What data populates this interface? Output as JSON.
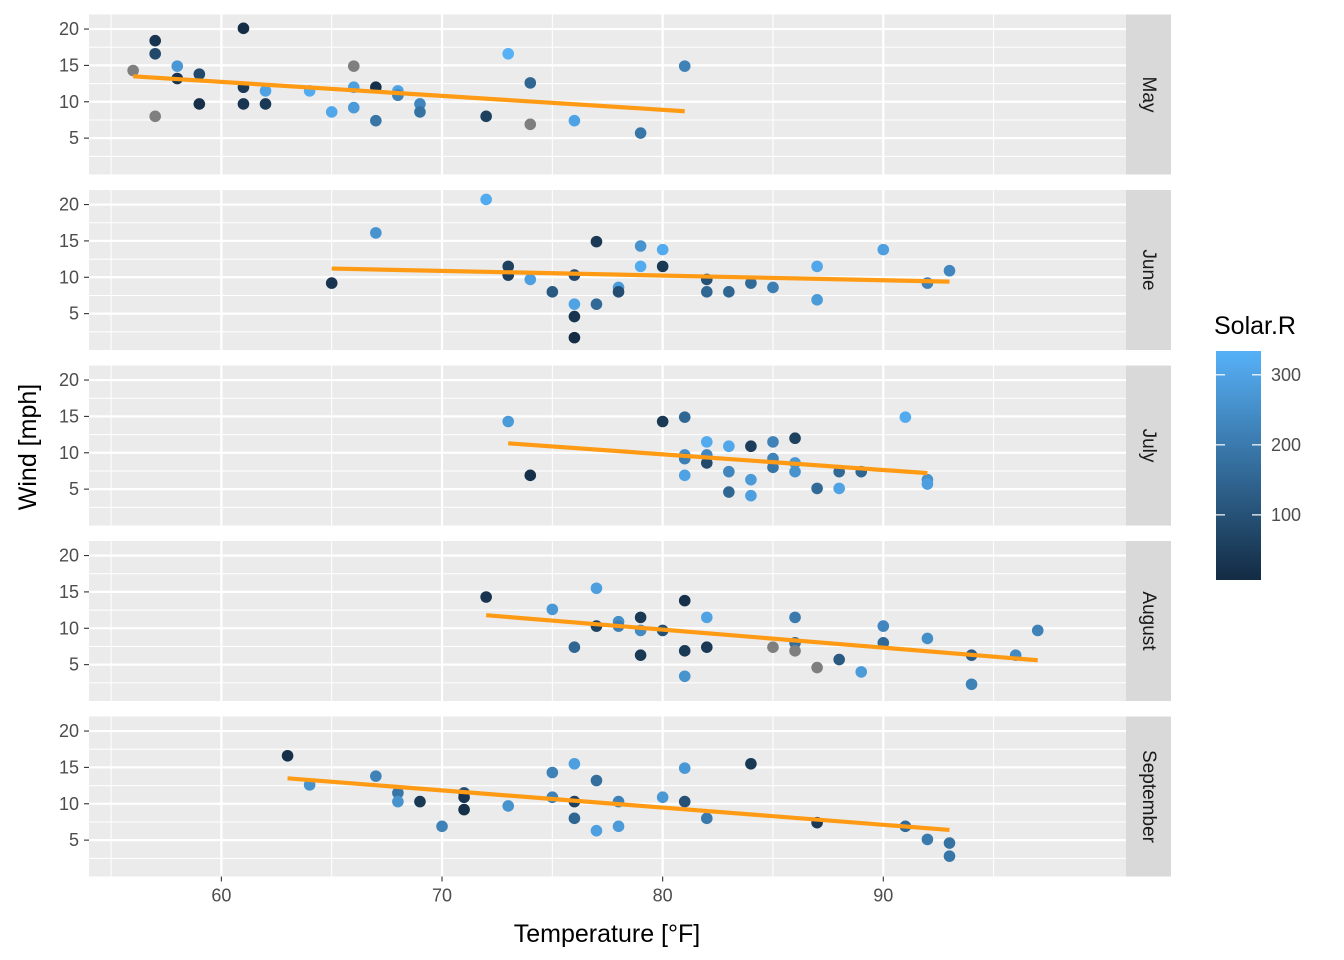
{
  "chart_data": {
    "type": "scatter",
    "facet_by": "Month",
    "xlabel": "Temperature [°F]",
    "ylabel": "Wind [mph]",
    "xlim": [
      54,
      101
    ],
    "ylim": [
      0,
      22
    ],
    "x_ticks": [
      60,
      70,
      80,
      90
    ],
    "y_ticks": [
      5,
      10,
      15,
      20
    ],
    "grid": true,
    "legend_position": "right",
    "color_scale": {
      "title": "Solar.R",
      "low_color": "#132B43",
      "high_color": "#56B1F7",
      "na_color": "#7F7F7F",
      "limits": [
        7,
        334
      ],
      "breaks": [
        100,
        200,
        300
      ]
    },
    "trend_line_color": "#FF9A14",
    "facets": [
      {
        "label": "May",
        "trend": {
          "x": [
            56,
            81
          ],
          "y": [
            13.5,
            8.7
          ]
        },
        "points": [
          {
            "x": 56,
            "y": 14.3,
            "solar": null
          },
          {
            "x": 57,
            "y": 18.4,
            "solar": 30
          },
          {
            "x": 57,
            "y": 16.6,
            "solar": 80
          },
          {
            "x": 57,
            "y": 8.0,
            "solar": null
          },
          {
            "x": 58,
            "y": 14.9,
            "solar": 270
          },
          {
            "x": 58,
            "y": 13.2,
            "solar": 30
          },
          {
            "x": 59,
            "y": 13.8,
            "solar": 80
          },
          {
            "x": 59,
            "y": 9.7,
            "solar": 20
          },
          {
            "x": 61,
            "y": 20.1,
            "solar": 10
          },
          {
            "x": 61,
            "y": 12.0,
            "solar": 40
          },
          {
            "x": 61,
            "y": 9.7,
            "solar": 30
          },
          {
            "x": 62,
            "y": 11.5,
            "solar": 300
          },
          {
            "x": 62,
            "y": 9.7,
            "solar": 40
          },
          {
            "x": 64,
            "y": 11.5,
            "solar": 320
          },
          {
            "x": 65,
            "y": 8.6,
            "solar": 310
          },
          {
            "x": 66,
            "y": 14.9,
            "solar": null
          },
          {
            "x": 66,
            "y": 12.0,
            "solar": 290
          },
          {
            "x": 66,
            "y": 9.2,
            "solar": 280
          },
          {
            "x": 67,
            "y": 12.0,
            "solar": 20
          },
          {
            "x": 67,
            "y": 7.4,
            "solar": 190
          },
          {
            "x": 68,
            "y": 11.5,
            "solar": 300
          },
          {
            "x": 68,
            "y": 10.9,
            "solar": 220
          },
          {
            "x": 69,
            "y": 9.7,
            "solar": 230
          },
          {
            "x": 69,
            "y": 8.6,
            "solar": 180
          },
          {
            "x": 72,
            "y": 8.0,
            "solar": 60
          },
          {
            "x": 73,
            "y": 16.6,
            "solar": 334
          },
          {
            "x": 74,
            "y": 12.6,
            "solar": 150
          },
          {
            "x": 74,
            "y": 6.9,
            "solar": null
          },
          {
            "x": 76,
            "y": 7.4,
            "solar": 300
          },
          {
            "x": 79,
            "y": 5.7,
            "solar": 190
          },
          {
            "x": 81,
            "y": 14.9,
            "solar": 220
          }
        ]
      },
      {
        "label": "June",
        "trend": {
          "x": [
            65,
            93
          ],
          "y": [
            11.2,
            9.4
          ]
        },
        "points": [
          {
            "x": 65,
            "y": 9.2,
            "solar": 30
          },
          {
            "x": 67,
            "y": 16.1,
            "solar": 260
          },
          {
            "x": 72,
            "y": 20.7,
            "solar": 320
          },
          {
            "x": 73,
            "y": 11.5,
            "solar": 60
          },
          {
            "x": 73,
            "y": 10.3,
            "solar": 50
          },
          {
            "x": 74,
            "y": 9.7,
            "solar": 290
          },
          {
            "x": 75,
            "y": 8.0,
            "solar": 120
          },
          {
            "x": 76,
            "y": 10.3,
            "solar": 80
          },
          {
            "x": 76,
            "y": 6.3,
            "solar": 300
          },
          {
            "x": 76,
            "y": 4.6,
            "solar": 30
          },
          {
            "x": 76,
            "y": 1.7,
            "solar": 10
          },
          {
            "x": 77,
            "y": 14.9,
            "solar": 40
          },
          {
            "x": 77,
            "y": 6.3,
            "solar": 160
          },
          {
            "x": 78,
            "y": 8.6,
            "solar": 280
          },
          {
            "x": 78,
            "y": 8.0,
            "solar": 90
          },
          {
            "x": 79,
            "y": 14.3,
            "solar": 260
          },
          {
            "x": 79,
            "y": 11.5,
            "solar": 320
          },
          {
            "x": 80,
            "y": 13.8,
            "solar": 320
          },
          {
            "x": 80,
            "y": 11.5,
            "solar": 40
          },
          {
            "x": 82,
            "y": 9.7,
            "solar": 100
          },
          {
            "x": 82,
            "y": 8.0,
            "solar": 150
          },
          {
            "x": 83,
            "y": 8.0,
            "solar": 150
          },
          {
            "x": 84,
            "y": 9.2,
            "solar": 160
          },
          {
            "x": 85,
            "y": 8.6,
            "solar": 210
          },
          {
            "x": 87,
            "y": 11.5,
            "solar": 310
          },
          {
            "x": 87,
            "y": 6.9,
            "solar": 280
          },
          {
            "x": 90,
            "y": 13.8,
            "solar": 290
          },
          {
            "x": 92,
            "y": 9.2,
            "solar": 220
          },
          {
            "x": 93,
            "y": 10.9,
            "solar": 230
          }
        ]
      },
      {
        "label": "July",
        "trend": {
          "x": [
            73,
            92
          ],
          "y": [
            11.3,
            7.2
          ]
        },
        "points": [
          {
            "x": 73,
            "y": 14.3,
            "solar": 280
          },
          {
            "x": 74,
            "y": 6.9,
            "solar": 20
          },
          {
            "x": 80,
            "y": 14.3,
            "solar": 40
          },
          {
            "x": 81,
            "y": 14.9,
            "solar": 150
          },
          {
            "x": 81,
            "y": 9.7,
            "solar": 250
          },
          {
            "x": 81,
            "y": 9.2,
            "solar": 210
          },
          {
            "x": 81,
            "y": 6.9,
            "solar": 300
          },
          {
            "x": 82,
            "y": 11.5,
            "solar": 320
          },
          {
            "x": 82,
            "y": 9.7,
            "solar": 230
          },
          {
            "x": 82,
            "y": 8.6,
            "solar": 80
          },
          {
            "x": 83,
            "y": 10.9,
            "solar": 310
          },
          {
            "x": 83,
            "y": 7.4,
            "solar": 230
          },
          {
            "x": 83,
            "y": 4.6,
            "solar": 150
          },
          {
            "x": 84,
            "y": 10.9,
            "solar": 50
          },
          {
            "x": 84,
            "y": 6.3,
            "solar": 280
          },
          {
            "x": 84,
            "y": 4.1,
            "solar": 290
          },
          {
            "x": 85,
            "y": 11.5,
            "solar": 220
          },
          {
            "x": 85,
            "y": 9.2,
            "solar": 220
          },
          {
            "x": 85,
            "y": 8.0,
            "solar": 190
          },
          {
            "x": 86,
            "y": 12.0,
            "solar": 60
          },
          {
            "x": 86,
            "y": 8.6,
            "solar": 270
          },
          {
            "x": 86,
            "y": 7.4,
            "solar": 260
          },
          {
            "x": 87,
            "y": 5.1,
            "solar": 160
          },
          {
            "x": 88,
            "y": 7.4,
            "solar": 160
          },
          {
            "x": 88,
            "y": 5.1,
            "solar": 300
          },
          {
            "x": 89,
            "y": 7.4,
            "solar": 150
          },
          {
            "x": 91,
            "y": 14.9,
            "solar": 320
          },
          {
            "x": 92,
            "y": 6.3,
            "solar": 260
          },
          {
            "x": 92,
            "y": 5.7,
            "solar": 290
          }
        ]
      },
      {
        "label": "August",
        "trend": {
          "x": [
            72,
            97
          ],
          "y": [
            11.8,
            5.6
          ]
        },
        "points": [
          {
            "x": 72,
            "y": 14.3,
            "solar": 30
          },
          {
            "x": 75,
            "y": 12.6,
            "solar": 270
          },
          {
            "x": 76,
            "y": 7.4,
            "solar": 150
          },
          {
            "x": 77,
            "y": 15.5,
            "solar": 290
          },
          {
            "x": 77,
            "y": 10.3,
            "solar": 60
          },
          {
            "x": 78,
            "y": 10.9,
            "solar": 250
          },
          {
            "x": 78,
            "y": 10.3,
            "solar": 210
          },
          {
            "x": 79,
            "y": 11.5,
            "solar": 40
          },
          {
            "x": 79,
            "y": 9.7,
            "solar": 240
          },
          {
            "x": 79,
            "y": 6.3,
            "solar": 40
          },
          {
            "x": 80,
            "y": 9.7,
            "solar": 100
          },
          {
            "x": 81,
            "y": 13.8,
            "solar": 20
          },
          {
            "x": 81,
            "y": 6.9,
            "solar": 40
          },
          {
            "x": 81,
            "y": 3.4,
            "solar": 260
          },
          {
            "x": 82,
            "y": 11.5,
            "solar": 300
          },
          {
            "x": 82,
            "y": 7.4,
            "solar": 40
          },
          {
            "x": 85,
            "y": 7.4,
            "solar": null
          },
          {
            "x": 86,
            "y": 11.5,
            "solar": 200
          },
          {
            "x": 86,
            "y": 8.0,
            "solar": 170
          },
          {
            "x": 86,
            "y": 6.9,
            "solar": null
          },
          {
            "x": 87,
            "y": 4.6,
            "solar": null
          },
          {
            "x": 88,
            "y": 5.7,
            "solar": 120
          },
          {
            "x": 89,
            "y": 4.0,
            "solar": 280
          },
          {
            "x": 90,
            "y": 10.3,
            "solar": 230
          },
          {
            "x": 90,
            "y": 8.0,
            "solar": 160
          },
          {
            "x": 92,
            "y": 8.6,
            "solar": 250
          },
          {
            "x": 94,
            "y": 6.3,
            "solar": 130
          },
          {
            "x": 94,
            "y": 2.3,
            "solar": 220
          },
          {
            "x": 96,
            "y": 6.3,
            "solar": 240
          },
          {
            "x": 97,
            "y": 9.7,
            "solar": 220
          }
        ]
      },
      {
        "label": "September",
        "trend": {
          "x": [
            63,
            93
          ],
          "y": [
            13.5,
            6.4
          ]
        },
        "points": [
          {
            "x": 63,
            "y": 16.6,
            "solar": 20
          },
          {
            "x": 64,
            "y": 12.6,
            "solar": 260
          },
          {
            "x": 67,
            "y": 13.8,
            "solar": 220
          },
          {
            "x": 68,
            "y": 11.5,
            "solar": 190
          },
          {
            "x": 68,
            "y": 10.3,
            "solar": 260
          },
          {
            "x": 69,
            "y": 10.3,
            "solar": 40
          },
          {
            "x": 70,
            "y": 6.9,
            "solar": 220
          },
          {
            "x": 71,
            "y": 11.5,
            "solar": 90
          },
          {
            "x": 71,
            "y": 10.9,
            "solar": 30
          },
          {
            "x": 71,
            "y": 9.2,
            "solar": 20
          },
          {
            "x": 73,
            "y": 9.7,
            "solar": 260
          },
          {
            "x": 75,
            "y": 14.3,
            "solar": 220
          },
          {
            "x": 75,
            "y": 10.9,
            "solar": 220
          },
          {
            "x": 76,
            "y": 15.5,
            "solar": 290
          },
          {
            "x": 76,
            "y": 10.3,
            "solar": 60
          },
          {
            "x": 76,
            "y": 8.0,
            "solar": 150
          },
          {
            "x": 77,
            "y": 13.2,
            "solar": 170
          },
          {
            "x": 77,
            "y": 6.3,
            "solar": 290
          },
          {
            "x": 78,
            "y": 10.3,
            "solar": 220
          },
          {
            "x": 78,
            "y": 6.9,
            "solar": 280
          },
          {
            "x": 80,
            "y": 10.9,
            "solar": 270
          },
          {
            "x": 81,
            "y": 14.9,
            "solar": 270
          },
          {
            "x": 81,
            "y": 10.3,
            "solar": 100
          },
          {
            "x": 82,
            "y": 8.0,
            "solar": 200
          },
          {
            "x": 84,
            "y": 15.5,
            "solar": 40
          },
          {
            "x": 87,
            "y": 7.4,
            "solar": 40
          },
          {
            "x": 91,
            "y": 6.9,
            "solar": 160
          },
          {
            "x": 92,
            "y": 5.1,
            "solar": 200
          },
          {
            "x": 93,
            "y": 4.6,
            "solar": 180
          },
          {
            "x": 93,
            "y": 2.8,
            "solar": 190
          }
        ]
      }
    ]
  }
}
